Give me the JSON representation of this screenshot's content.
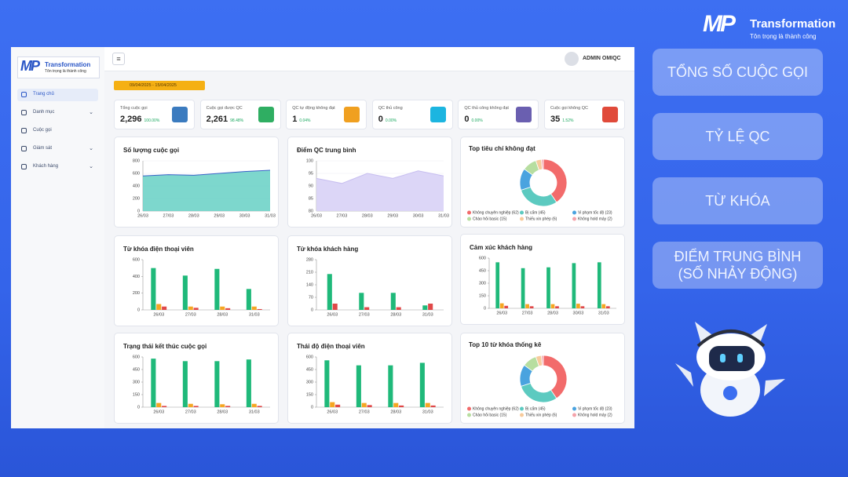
{
  "brand": {
    "mark": "MP",
    "name": "Transformation",
    "slogan": "Tôn trọng là thành công"
  },
  "sidebar": {
    "menu": [
      {
        "label": "Trang chủ",
        "active": true,
        "has_submenu": false
      },
      {
        "label": "Danh mục",
        "active": false,
        "has_submenu": true
      },
      {
        "label": "Cuộc gọi",
        "active": false,
        "has_submenu": false
      },
      {
        "label": "Giám sát",
        "active": false,
        "has_submenu": true
      },
      {
        "label": "Khách hàng",
        "active": false,
        "has_submenu": true
      }
    ]
  },
  "topbar": {
    "user": "ADMIN OMIQC",
    "date_range": "09/04/2025 - 15/04/2025"
  },
  "stats": [
    {
      "label": "Tổng cuộc gọi",
      "value": "2,296",
      "percent": "100.00%",
      "color": "#3b7bbf"
    },
    {
      "label": "Cuộc gọi được QC",
      "value": "2,261",
      "percent": "98.48%",
      "color": "#2fae62"
    },
    {
      "label": "QC tự động không đạt",
      "value": "1",
      "percent": "0.04%",
      "color": "#f0a020"
    },
    {
      "label": "QC thủ công",
      "value": "0",
      "percent": "0.00%",
      "color": "#1cb5e0"
    },
    {
      "label": "QC thủ công không đạt",
      "value": "0",
      "percent": "0.00%",
      "color": "#6a5fb0"
    },
    {
      "label": "Cuộc gọi không QC",
      "value": "35",
      "percent": "1.52%",
      "color": "#e04a3a"
    }
  ],
  "charts": [
    {
      "type": "area",
      "title": "Số lượng cuộc gọi",
      "categories": [
        "26/03",
        "27/03",
        "28/03",
        "29/03",
        "30/03",
        "31/03"
      ],
      "series": [
        {
          "color": "#6fd3c8",
          "values": [
            560,
            580,
            570,
            600,
            630,
            650
          ]
        }
      ],
      "ylim": [
        0,
        800
      ],
      "yticks": [
        0,
        200,
        400,
        600,
        800
      ],
      "grid": true
    },
    {
      "type": "area",
      "title": "Điểm QC trung bình",
      "categories": [
        "26/03",
        "27/03",
        "28/03",
        "29/03",
        "30/03",
        "31/03"
      ],
      "series": [
        {
          "color": "#d8d1f6",
          "values": [
            93,
            91,
            95,
            93,
            96,
            94
          ]
        }
      ],
      "ylim": [
        80,
        100
      ],
      "yticks": [
        80,
        85,
        90,
        95,
        100
      ],
      "grid": true
    },
    {
      "type": "donut",
      "title": "Top tiêu chí không đạt",
      "categories": [
        "Không chuyên nghiệp (62)",
        "Bị cấm (45)",
        "Vi phạm tốc độ (23)",
        "Chào hỏi basic (15)",
        "Thiếu xin phép (6)",
        "Không hold máy (2)"
      ],
      "values": [
        62,
        45,
        23,
        15,
        6,
        2
      ],
      "colors": [
        "#f26b6b",
        "#5ccac0",
        "#4aa3df",
        "#b7dea0",
        "#f7cb9c",
        "#f4a3ab"
      ]
    },
    {
      "type": "bar",
      "title": "Từ khóa điện thoại viên",
      "categories": [
        "26/03",
        "27/03",
        "28/03",
        "31/03"
      ],
      "series": [
        {
          "color": "#1fb97a",
          "values": [
            500,
            410,
            490,
            250
          ]
        },
        {
          "color": "#f5a623",
          "values": [
            70,
            40,
            40,
            40
          ]
        },
        {
          "color": "#e04848",
          "values": [
            40,
            25,
            20,
            10
          ]
        }
      ],
      "ylim": [
        0,
        600
      ],
      "yticks": [
        0,
        200,
        400,
        600
      ],
      "grid": false
    },
    {
      "type": "bar",
      "title": "Từ khóa khách hàng",
      "categories": [
        "26/03",
        "27/03",
        "28/03",
        "31/03"
      ],
      "series": [
        {
          "color": "#1fb97a",
          "values": [
            200,
            95,
            95,
            25
          ]
        },
        {
          "color": "#e04848",
          "values": [
            35,
            15,
            15,
            35
          ]
        }
      ],
      "ylim": [
        0,
        280
      ],
      "yticks": [
        0,
        70,
        140,
        210,
        280
      ],
      "grid": false
    },
    {
      "type": "bar",
      "title": "Cảm xúc khách hàng",
      "categories": [
        "26/03",
        "27/03",
        "28/03",
        "30/03",
        "31/03"
      ],
      "series": [
        {
          "color": "#1fb97a",
          "values": [
            550,
            480,
            490,
            540,
            550
          ]
        },
        {
          "color": "#f5a623",
          "values": [
            60,
            50,
            50,
            55,
            50
          ]
        },
        {
          "color": "#e04848",
          "values": [
            30,
            25,
            25,
            25,
            25
          ]
        }
      ],
      "ylim": [
        0,
        600
      ],
      "yticks": [
        0,
        150,
        300,
        450,
        600
      ],
      "grid": false
    },
    {
      "type": "bar",
      "title": "Trạng thái kết thúc cuộc gọi",
      "categories": [
        "26/03",
        "27/03",
        "28/03",
        "31/03"
      ],
      "series": [
        {
          "color": "#1fb97a",
          "values": [
            580,
            550,
            550,
            570
          ]
        },
        {
          "color": "#f5a623",
          "values": [
            50,
            40,
            35,
            40
          ]
        },
        {
          "color": "#e04848",
          "values": [
            15,
            15,
            15,
            15
          ]
        }
      ],
      "ylim": [
        0,
        600
      ],
      "yticks": [
        0,
        150,
        300,
        450,
        600
      ],
      "grid": false
    },
    {
      "type": "bar",
      "title": "Thái độ điện thoại viên",
      "categories": [
        "26/03",
        "27/03",
        "28/03",
        "31/03"
      ],
      "series": [
        {
          "color": "#1fb97a",
          "values": [
            560,
            500,
            500,
            530
          ]
        },
        {
          "color": "#f5a623",
          "values": [
            60,
            50,
            50,
            50
          ]
        },
        {
          "color": "#e04848",
          "values": [
            30,
            25,
            20,
            20
          ]
        }
      ],
      "ylim": [
        0,
        600
      ],
      "yticks": [
        0,
        150,
        300,
        450,
        600
      ],
      "grid": false
    },
    {
      "type": "donut",
      "title": "Top 10 từ khóa thống kê",
      "categories": [
        "Không chuyên nghiệp (62)",
        "Bị cấm (45)",
        "Vi phạm tốc độ (23)",
        "Chào hỏi basic (15)",
        "Thiếu xin phép (6)",
        "Không hold máy (2)"
      ],
      "values": [
        62,
        45,
        23,
        15,
        6,
        2
      ],
      "colors": [
        "#f26b6b",
        "#5ccac0",
        "#4aa3df",
        "#b7dea0",
        "#f7cb9c",
        "#f4a3ab"
      ]
    }
  ],
  "features": [
    "TỔNG SỐ CUỘC GỌI",
    "TỶ LỆ QC",
    "TỪ KHÓA",
    "ĐIỂM TRUNG BÌNH\n(SỐ NHẢY ĐỘNG)"
  ]
}
